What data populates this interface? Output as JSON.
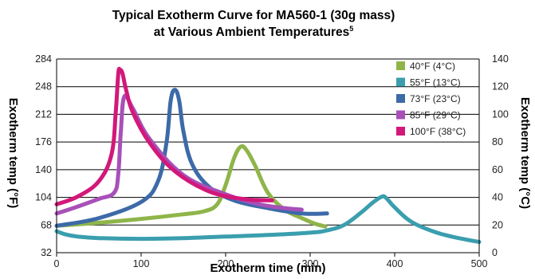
{
  "chart_data": {
    "type": "line",
    "title_line1": "Typical Exotherm Curve for MA560-1 (30g mass)",
    "title_line2": "at Various Ambient Temperatures",
    "title_superscript": "5",
    "xlabel": "Exotherm time (min)",
    "ylabel_left": "Exotherm temp (°F)",
    "ylabel_right": "Exotherm temp (°C)",
    "xlim": [
      0,
      500
    ],
    "ylim_left": [
      32,
      284
    ],
    "ylim_right": [
      0,
      140
    ],
    "x_ticks": [
      "0",
      "100",
      "200",
      "300",
      "400",
      "500"
    ],
    "y_ticks_left": [
      "32",
      "68",
      "104",
      "140",
      "176",
      "212",
      "248",
      "284"
    ],
    "y_ticks_right": [
      "0",
      "20",
      "40",
      "60",
      "80",
      "100",
      "120",
      "140"
    ],
    "grid": "horizontal",
    "legend_position": "top-right",
    "series": [
      {
        "name": "40°F (4°C)",
        "color": "#8fb54a",
        "x": [
          0,
          50,
          100,
          150,
          175,
          190,
          200,
          210,
          218,
          225,
          235,
          250,
          270,
          290,
          305,
          318
        ],
        "y": [
          67,
          71,
          76,
          82,
          86,
          95,
          120,
          155,
          170,
          165,
          145,
          110,
          88,
          77,
          70,
          66
        ]
      },
      {
        "name": "55°F (13°C)",
        "color": "#3a9eae",
        "x": [
          0,
          10,
          25,
          50,
          100,
          150,
          200,
          250,
          300,
          320,
          340,
          360,
          375,
          385,
          390,
          400,
          420,
          450,
          480,
          500
        ],
        "y": [
          60,
          56,
          53,
          51,
          50,
          51,
          53,
          55,
          58,
          61,
          68,
          84,
          98,
          105,
          103,
          91,
          72,
          58,
          50,
          46
        ]
      },
      {
        "name": "73°F (23°C)",
        "color": "#3d6aa8",
        "x": [
          0,
          50,
          100,
          120,
          130,
          135,
          140,
          145,
          150,
          160,
          180,
          210,
          250,
          290,
          320
        ],
        "y": [
          67,
          77,
          98,
          125,
          175,
          230,
          244,
          230,
          190,
          148,
          118,
          100,
          90,
          83,
          83
        ]
      },
      {
        "name": "85°F (29°C)",
        "color": "#a850b8",
        "x": [
          0,
          25,
          50,
          68,
          73,
          76,
          80,
          90,
          110,
          150,
          200,
          240,
          270,
          290
        ],
        "y": [
          83,
          92,
          102,
          110,
          135,
          190,
          235,
          220,
          180,
          133,
          108,
          95,
          90,
          88
        ]
      },
      {
        "name": "100°F (38°C)",
        "color": "#d2187a",
        "x": [
          0,
          25,
          50,
          65,
          70,
          73,
          75,
          78,
          82,
          90,
          110,
          140,
          180,
          220,
          255
        ],
        "y": [
          95,
          105,
          125,
          160,
          215,
          265,
          270,
          265,
          245,
          215,
          175,
          138,
          112,
          102,
          100
        ]
      }
    ]
  }
}
